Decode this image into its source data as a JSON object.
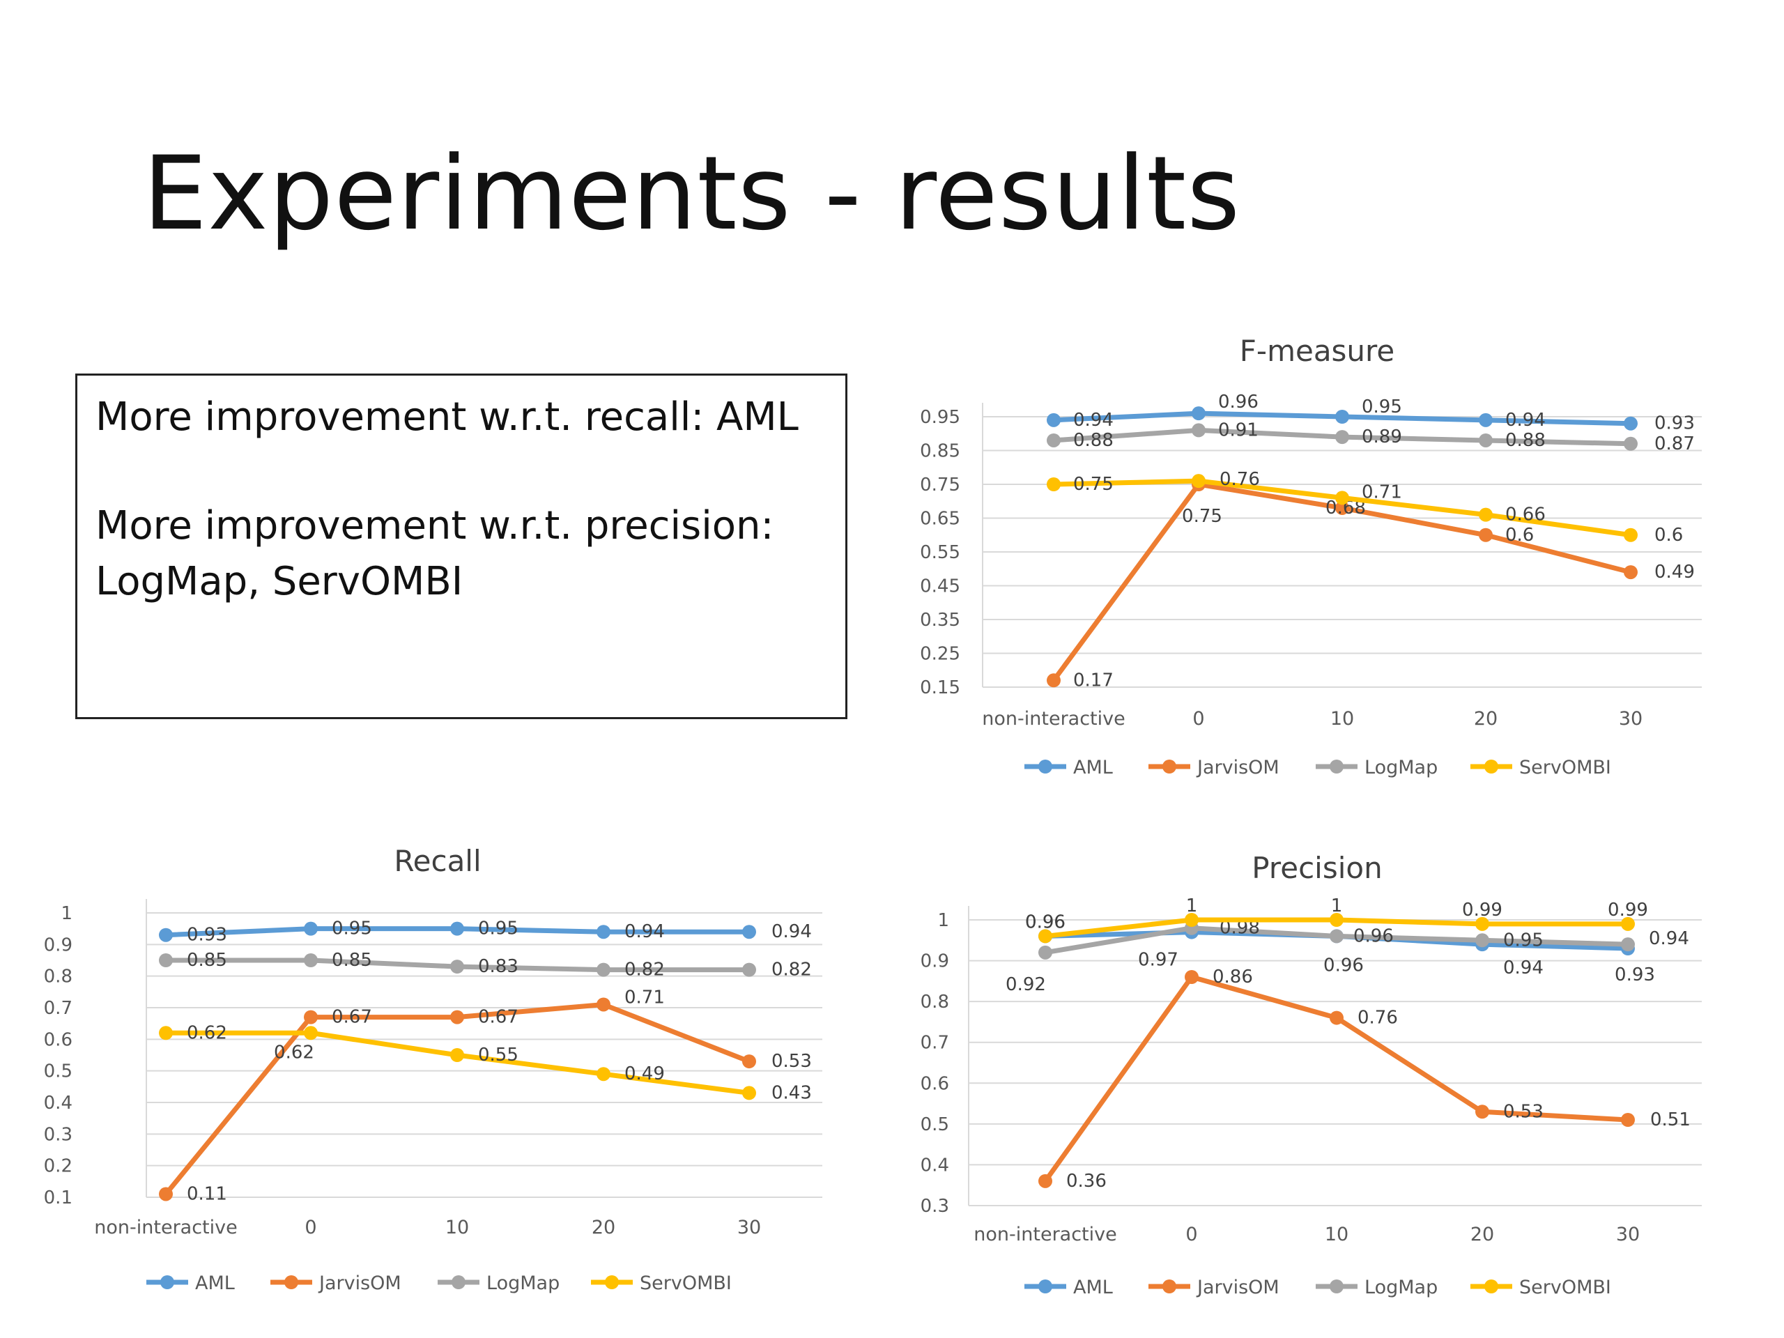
{
  "slide": {
    "title": "Experiments - results",
    "notes": [
      "More improvement w.r.t. recall: AML",
      "More improvement w.r.t. precision:",
      "LogMap, ServOMBI"
    ]
  },
  "colors": {
    "AML": "#5b9bd5",
    "JarvisOM": "#ed7d31",
    "LogMap": "#a5a5a5",
    "ServOMBI": "#ffc000"
  },
  "chart_data": [
    {
      "type": "line",
      "title": "F-measure",
      "x": [
        "non-interactive",
        "0",
        "10",
        "20",
        "30"
      ],
      "y_ticks": [
        "0.15",
        "0.25",
        "0.35",
        "0.45",
        "0.55",
        "0.65",
        "0.75",
        "0.85",
        "0.95"
      ],
      "ylim": [
        0.15,
        0.95
      ],
      "grid": true,
      "legend": "bottom",
      "series": [
        {
          "name": "AML",
          "values": [
            0.94,
            0.96,
            0.95,
            0.94,
            0.93
          ],
          "labels": [
            "0.94",
            "0.96",
            "0.95",
            "0.94",
            "0.93"
          ]
        },
        {
          "name": "JarvisOM",
          "values": [
            0.17,
            0.75,
            0.68,
            0.6,
            0.49
          ],
          "labels": [
            "0.17",
            "0.75",
            "0.68",
            "0.6",
            "0.49"
          ]
        },
        {
          "name": "LogMap",
          "values": [
            0.88,
            0.91,
            0.89,
            0.88,
            0.87
          ],
          "labels": [
            "0.88",
            "0.91",
            "0.89",
            "0.88",
            "0.87"
          ]
        },
        {
          "name": "ServOMBI",
          "values": [
            0.75,
            0.76,
            0.71,
            0.66,
            0.6
          ],
          "labels": [
            "0.75",
            "0.76",
            "0.71",
            "0.66",
            "0.6"
          ]
        }
      ]
    },
    {
      "type": "line",
      "title": "Recall",
      "x": [
        "non-interactive",
        "0",
        "10",
        "20",
        "30"
      ],
      "y_ticks": [
        "0.1",
        "0.2",
        "0.3",
        "0.4",
        "0.5",
        "0.6",
        "0.7",
        "0.8",
        "0.9",
        "1"
      ],
      "ylim": [
        0.1,
        1
      ],
      "grid": true,
      "legend": "bottom",
      "series": [
        {
          "name": "AML",
          "values": [
            0.93,
            0.95,
            0.95,
            0.94,
            0.94
          ],
          "labels": [
            "0.93",
            "0.95",
            "0.95",
            "0.94",
            "0.94"
          ]
        },
        {
          "name": "JarvisOM",
          "values": [
            0.11,
            0.67,
            0.67,
            0.71,
            0.53
          ],
          "labels": [
            "0.11",
            "0.67",
            "0.67",
            "0.71",
            "0.53"
          ]
        },
        {
          "name": "LogMap",
          "values": [
            0.85,
            0.85,
            0.83,
            0.82,
            0.82
          ],
          "labels": [
            "0.85",
            "0.85",
            "0.83",
            "0.82",
            "0.82"
          ]
        },
        {
          "name": "ServOMBI",
          "values": [
            0.62,
            0.62,
            0.55,
            0.49,
            0.43
          ],
          "labels": [
            "0.62",
            "0.62",
            "0.55",
            "0.49",
            "0.43"
          ]
        }
      ]
    },
    {
      "type": "line",
      "title": "Precision",
      "x": [
        "non-interactive",
        "0",
        "10",
        "20",
        "30"
      ],
      "y_ticks": [
        "0.3",
        "0.4",
        "0.5",
        "0.6",
        "0.7",
        "0.8",
        "0.9",
        "1"
      ],
      "ylim": [
        0.3,
        1
      ],
      "grid": true,
      "legend": "bottom",
      "series": [
        {
          "name": "AML",
          "values": [
            0.96,
            0.97,
            0.96,
            0.94,
            0.93
          ],
          "labels": [
            "0.96",
            "0.97",
            "0.96",
            "0.94",
            "0.93"
          ]
        },
        {
          "name": "JarvisOM",
          "values": [
            0.36,
            0.86,
            0.76,
            0.53,
            0.51
          ],
          "labels": [
            "0.36",
            "0.86",
            "0.76",
            "0.53",
            "0.51"
          ]
        },
        {
          "name": "LogMap",
          "values": [
            0.92,
            0.98,
            0.96,
            0.95,
            0.94
          ],
          "labels": [
            "0.92",
            "0.98",
            "0.96",
            "0.95",
            "0.94"
          ]
        },
        {
          "name": "ServOMBI",
          "values": [
            0.96,
            1,
            1,
            0.99,
            0.99
          ],
          "labels": [
            "0.96",
            "1",
            "1",
            "0.99",
            "0.99"
          ]
        }
      ]
    }
  ]
}
